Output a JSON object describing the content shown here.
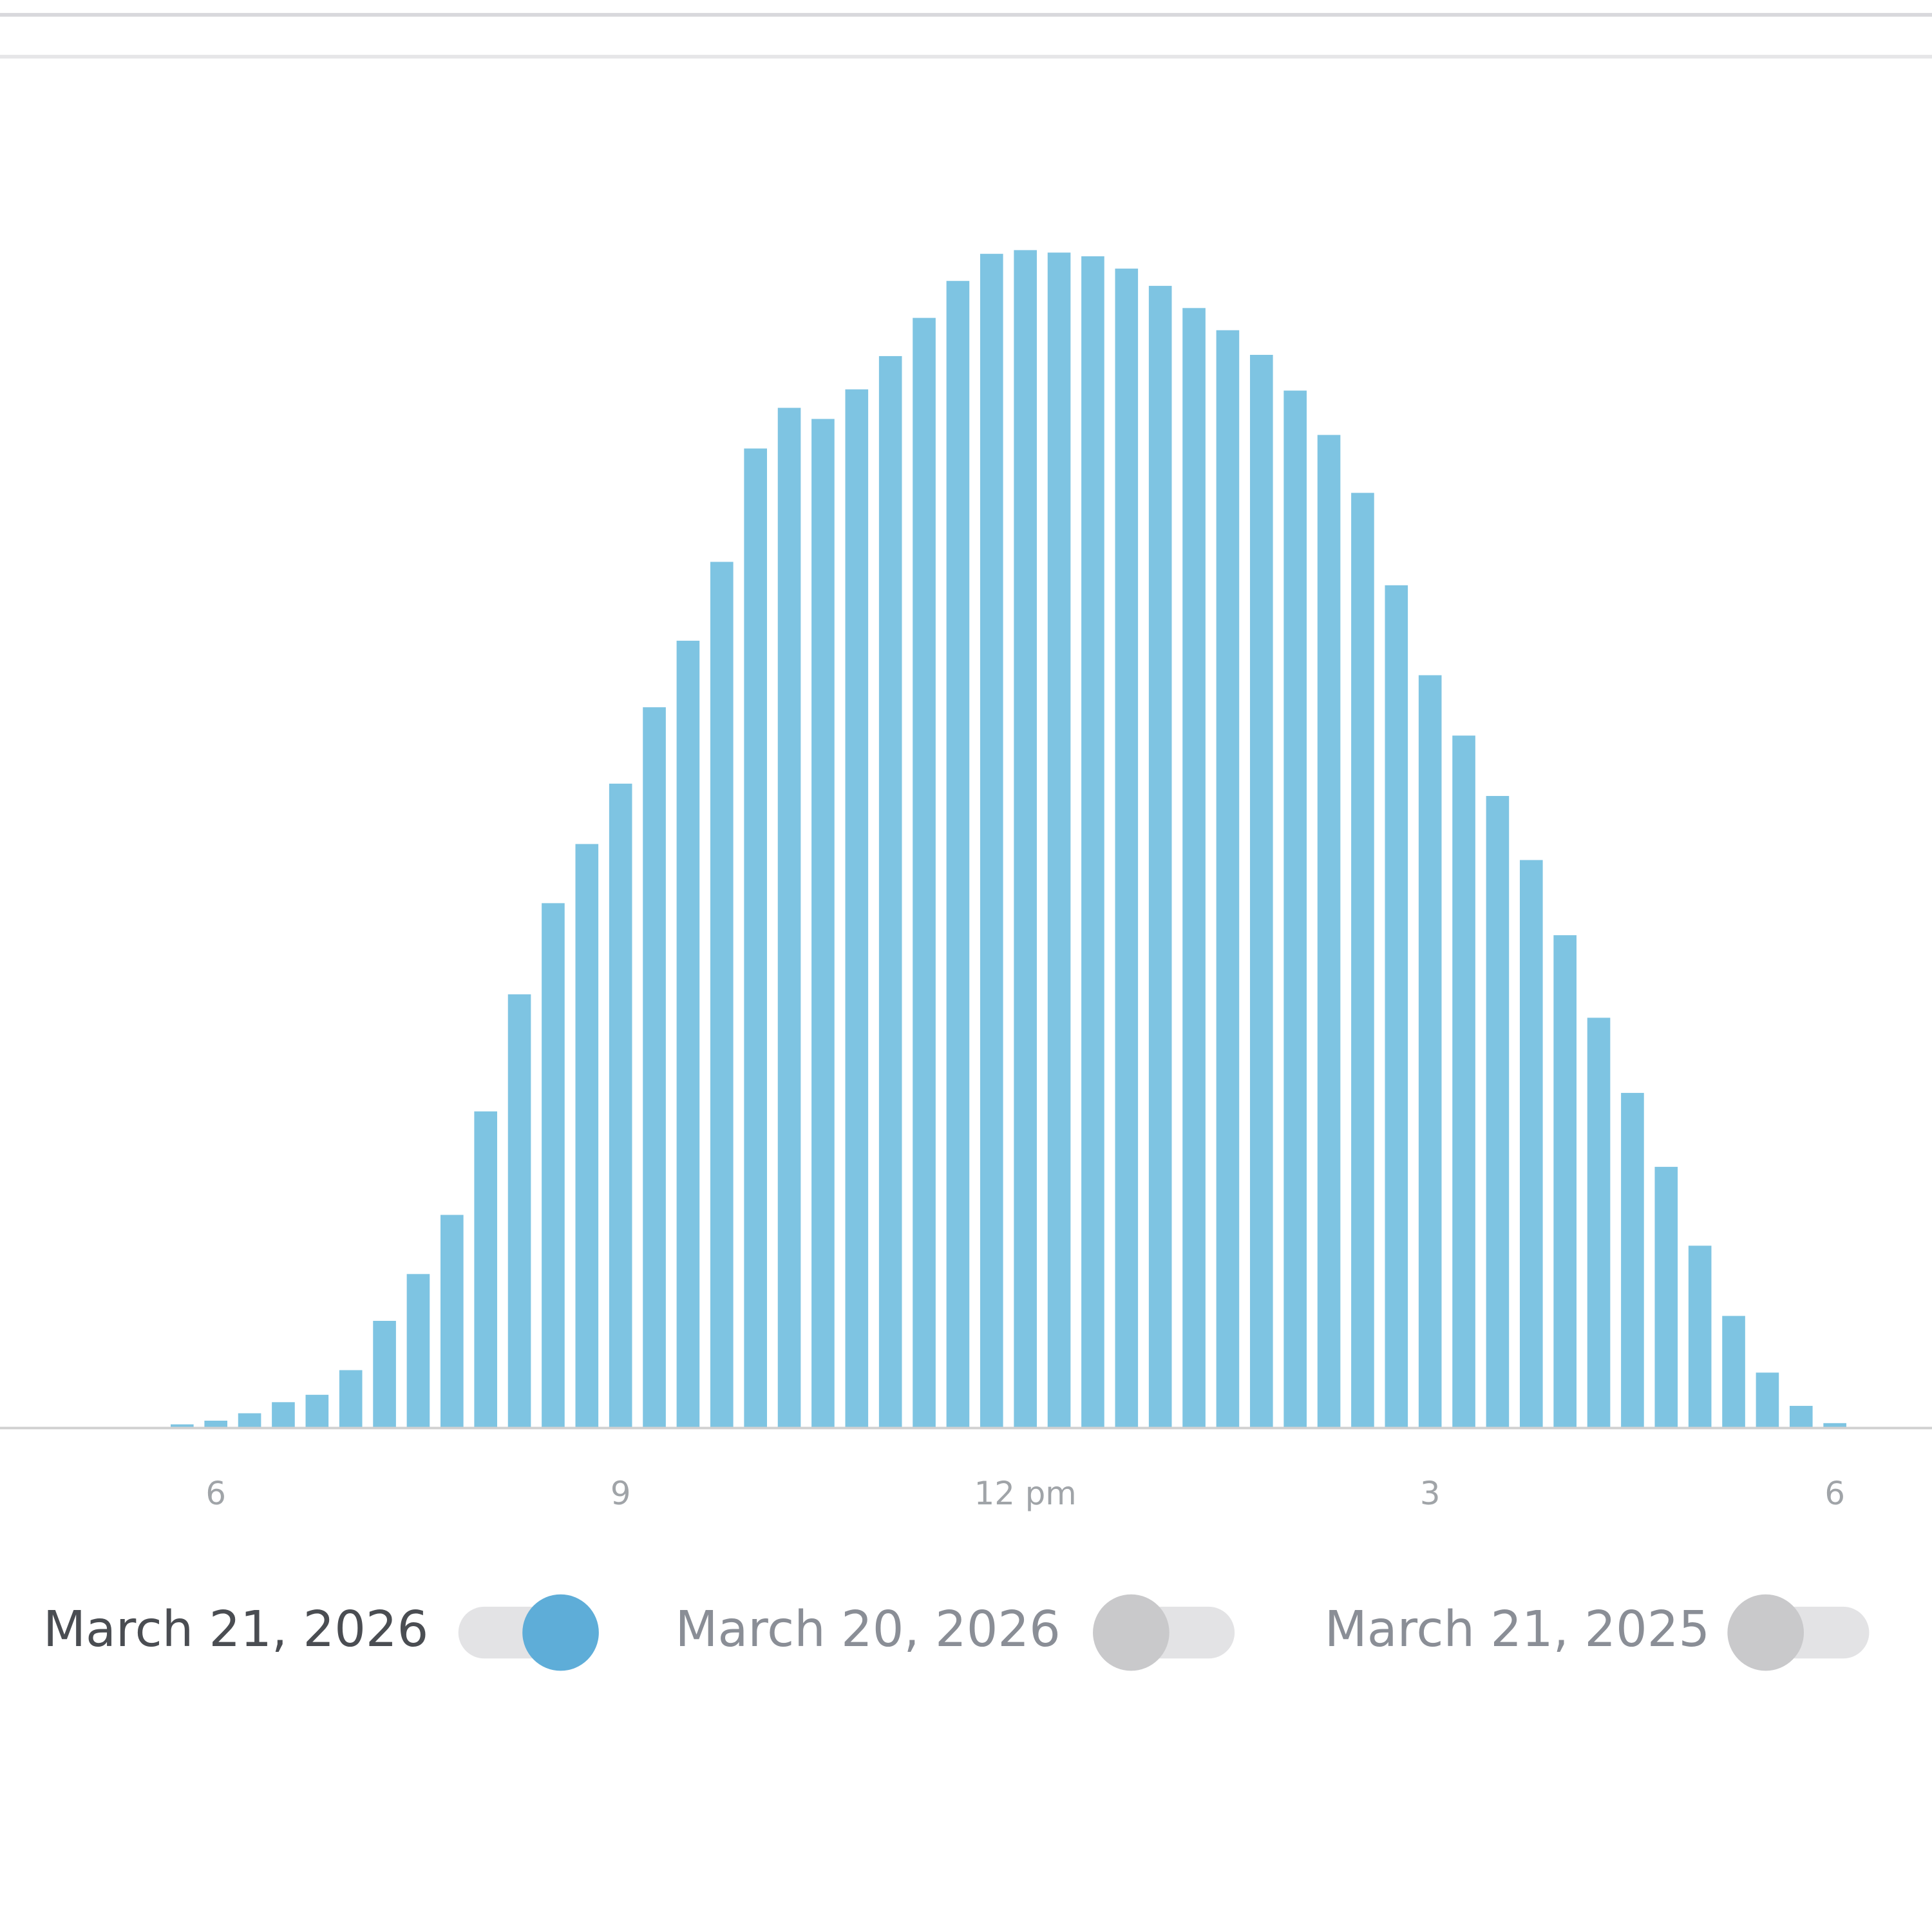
{
  "chart_data": {
    "type": "bar",
    "color": "#7ec4e2",
    "x": [
      5.75,
      6,
      6.25,
      6.5,
      6.75,
      7,
      7.25,
      7.5,
      7.75,
      8,
      8.25,
      8.5,
      8.75,
      9,
      9.25,
      9.5,
      9.75,
      10,
      10.25,
      10.5,
      10.75,
      11,
      11.25,
      11.5,
      11.75,
      12,
      12.25,
      12.5,
      12.75,
      13,
      13.25,
      13.5,
      13.75,
      14,
      14.25,
      14.5,
      14.75,
      15,
      15.25,
      15.5,
      15.75,
      16,
      16.25,
      16.5,
      16.75,
      17,
      17.25,
      17.5,
      17.75,
      18
    ],
    "values": [
      2,
      5,
      11,
      20,
      26,
      46,
      86,
      124,
      172,
      256,
      351,
      425,
      473,
      522,
      584,
      638,
      702,
      794,
      827,
      818,
      842,
      869,
      900,
      930,
      952,
      955,
      953,
      950,
      940,
      926,
      908,
      890,
      870,
      841,
      805,
      758,
      683,
      610,
      561,
      512,
      460,
      399,
      332,
      271,
      211,
      147,
      90,
      44,
      17,
      3
    ],
    "xlim": [
      4.4,
      18.72
    ],
    "ylim": [
      0,
      1108
    ],
    "xticks": [
      6,
      9,
      {
        "value": 12,
        "label": "12 pm"
      },
      {
        "value": 15,
        "label": "3"
      },
      {
        "value": 18,
        "label": "6"
      }
    ],
    "toggles": [
      {
        "label": "March 21, 2026",
        "active": true
      },
      {
        "label": "March 20, 2026",
        "active": false
      },
      {
        "label": "March 21, 2025",
        "active": false
      }
    ]
  }
}
